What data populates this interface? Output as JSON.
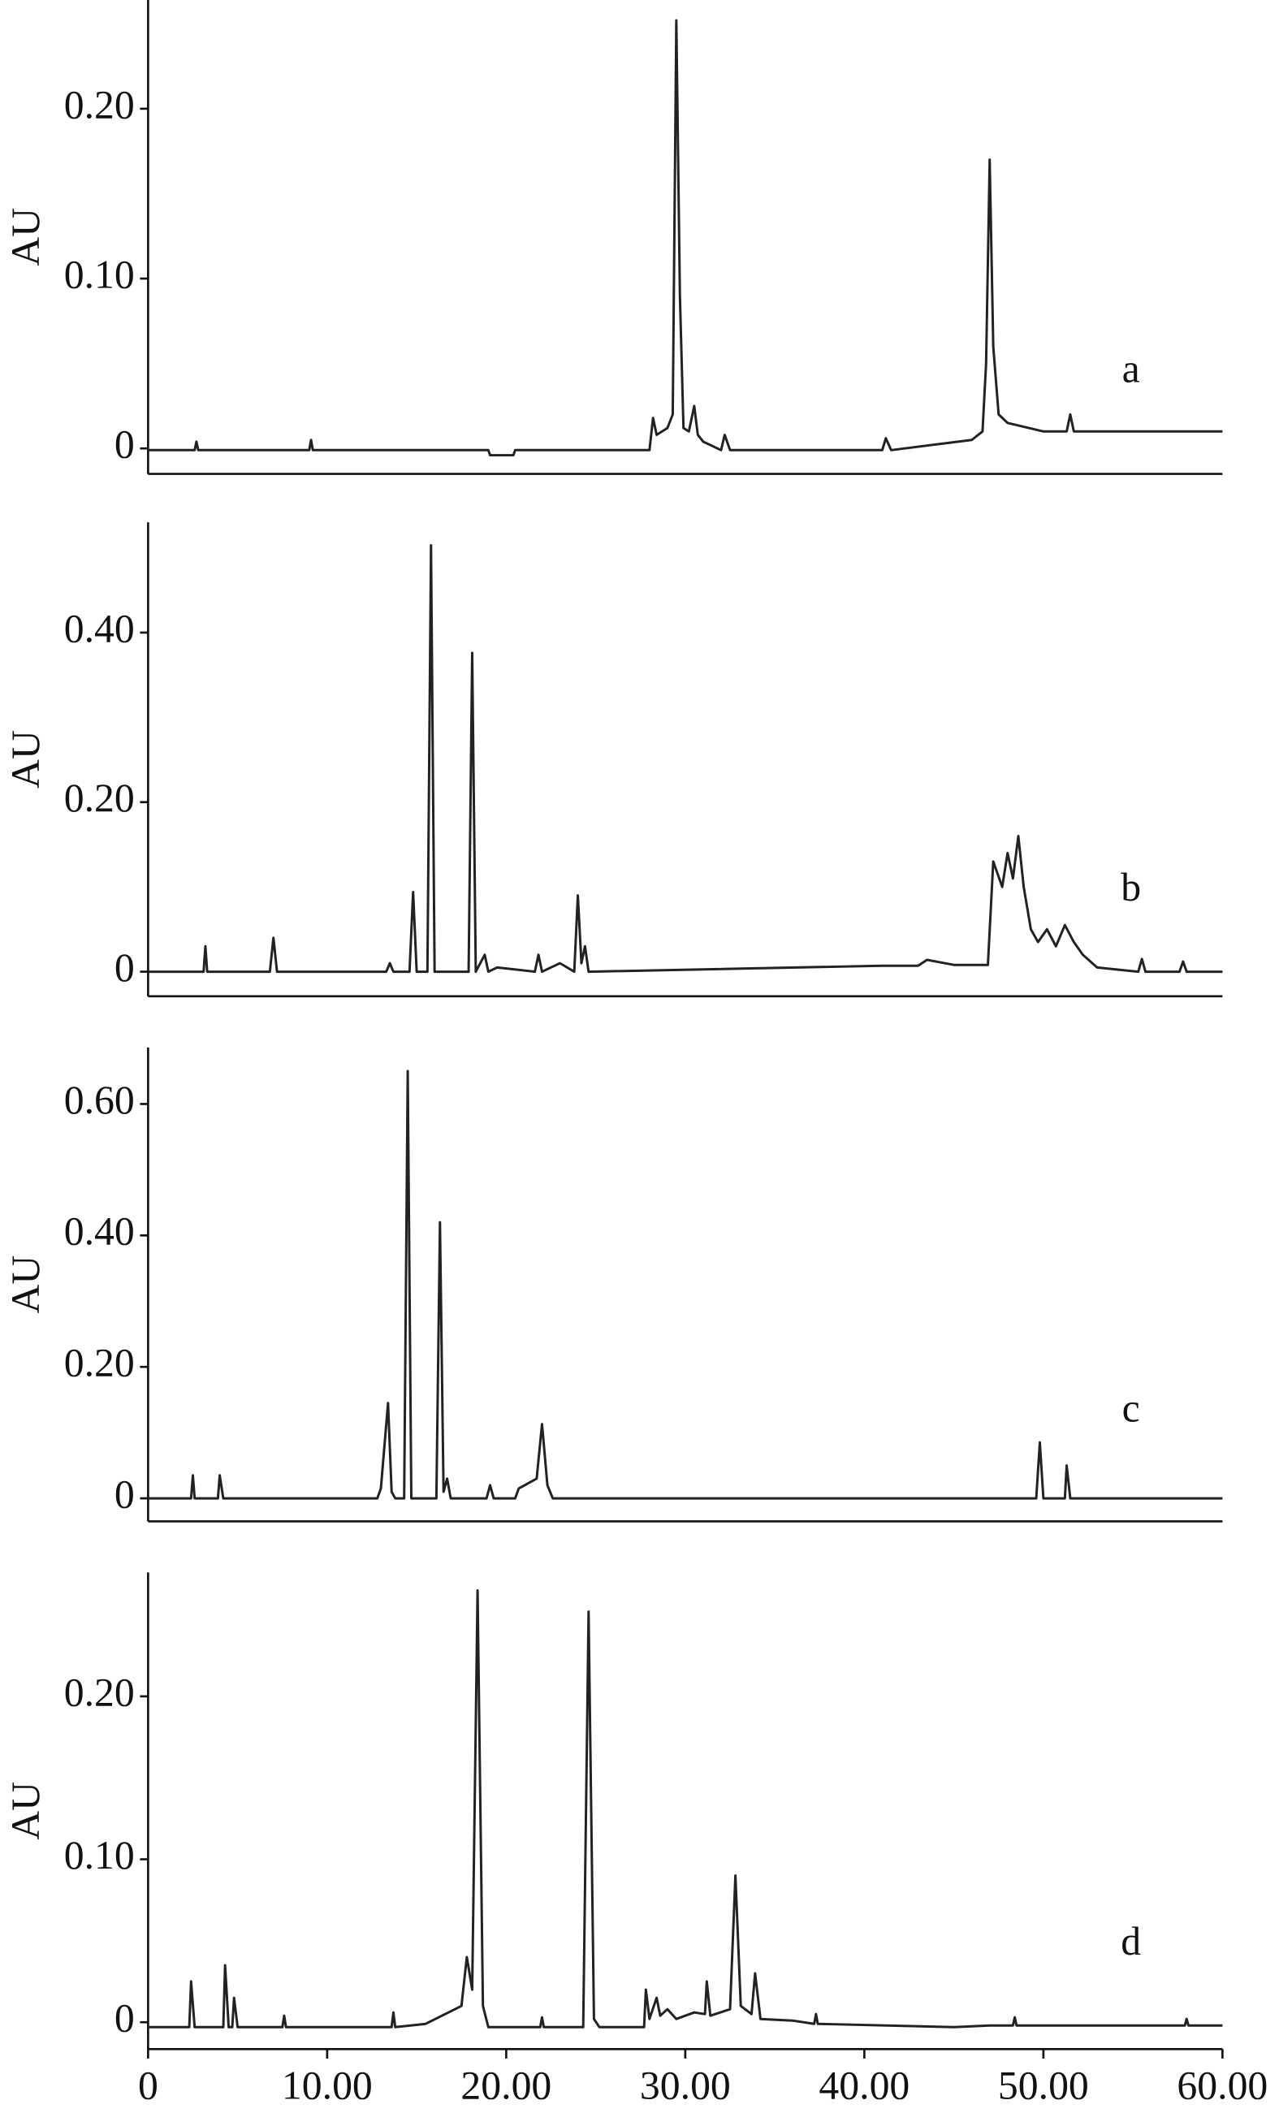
{
  "chart_data": [
    {
      "type": "line",
      "label": "a",
      "y_label": "AU",
      "color": "#222",
      "x": [
        0,
        2.6,
        2.7,
        2.8,
        9,
        9.1,
        9.2,
        19,
        19.1,
        20.4,
        20.5,
        28,
        28.2,
        28.4,
        29,
        29.3,
        29.5,
        29.7,
        29.9,
        30.2,
        30.5,
        30.7,
        31,
        32,
        32.2,
        32.5,
        41,
        41.2,
        41.5,
        46,
        46.6,
        46.8,
        47,
        47.2,
        47.5,
        48,
        50,
        51.3,
        51.5,
        51.7,
        55,
        60
      ],
      "values": [
        -0.001,
        -0.001,
        0.004,
        -0.001,
        -0.001,
        0.005,
        -0.001,
        -0.001,
        -0.004,
        -0.004,
        -0.001,
        -0.001,
        0.018,
        0.008,
        0.012,
        0.02,
        0.252,
        0.09,
        0.012,
        0.01,
        0.025,
        0.008,
        0.004,
        -0.001,
        0.008,
        -0.001,
        -0.001,
        0.006,
        -0.001,
        0.005,
        0.01,
        0.05,
        0.17,
        0.06,
        0.02,
        0.015,
        0.01,
        0.01,
        0.02,
        0.01,
        0.01,
        0.01
      ],
      "xlim": [
        0,
        60
      ],
      "ylim": [
        -0.015,
        0.264
      ],
      "yticks": [
        0,
        {
          "value": 0.1,
          "label": "0.10"
        },
        {
          "value": 0.2,
          "label": "0.20"
        }
      ]
    },
    {
      "type": "line",
      "label": "b",
      "y_label": "AU",
      "color": "#222",
      "x": [
        0,
        3.1,
        3.2,
        3.3,
        6.8,
        7,
        7.2,
        13.3,
        13.5,
        13.7,
        14.6,
        14.8,
        15,
        15.6,
        15.8,
        16,
        17.9,
        18.1,
        18.3,
        18.8,
        19,
        19.5,
        21.6,
        21.8,
        22,
        23,
        23.8,
        24,
        24.2,
        24.4,
        24.6,
        41,
        43,
        43.5,
        45,
        46.9,
        47.2,
        47.7,
        48,
        48.3,
        48.6,
        48.9,
        49.3,
        49.7,
        50.2,
        50.7,
        51.2,
        51.7,
        52.2,
        53,
        55.3,
        55.5,
        55.7,
        57.6,
        57.8,
        58,
        60
      ],
      "values": [
        0,
        0,
        0.03,
        0,
        0,
        0.04,
        0,
        0,
        0.01,
        0,
        0,
        0.094,
        0,
        0,
        0.503,
        0,
        0,
        0.376,
        0,
        0.02,
        0,
        0.005,
        0,
        0.02,
        0,
        0.01,
        0,
        0.09,
        0.01,
        0.03,
        0,
        0.007,
        0.007,
        0.014,
        0.008,
        0.008,
        0.13,
        0.1,
        0.14,
        0.11,
        0.16,
        0.1,
        0.05,
        0.035,
        0.05,
        0.03,
        0.055,
        0.035,
        0.02,
        0.005,
        0,
        0.015,
        0,
        0,
        0.012,
        0,
        0
      ],
      "xlim": [
        0,
        60
      ],
      "ylim": [
        -0.029,
        0.53
      ],
      "yticks": [
        0,
        {
          "value": 0.2,
          "label": "0.20"
        },
        {
          "value": 0.4,
          "label": "0.40"
        }
      ]
    },
    {
      "type": "line",
      "label": "c",
      "y_label": "AU",
      "color": "#222",
      "x": [
        0,
        2.4,
        2.5,
        2.6,
        3.9,
        4,
        4.2,
        12.8,
        13,
        13.4,
        13.6,
        13.8,
        14.3,
        14.5,
        14.7,
        16.1,
        16.3,
        16.5,
        16.7,
        16.9,
        18.9,
        19.1,
        19.3,
        20.5,
        20.7,
        21.7,
        22,
        22.3,
        22.6,
        49.6,
        49.8,
        50,
        51.2,
        51.3,
        51.5,
        60
      ],
      "values": [
        0,
        0,
        0.035,
        0,
        0,
        0.035,
        0,
        0,
        0.015,
        0.145,
        0.01,
        0,
        0,
        0.65,
        0,
        0,
        0.42,
        0.01,
        0.03,
        0,
        0,
        0.02,
        0,
        0,
        0.015,
        0.03,
        0.113,
        0.02,
        0,
        0,
        0.085,
        0,
        0,
        0.05,
        0,
        0
      ],
      "xlim": [
        0,
        60
      ],
      "ylim": [
        -0.035,
        0.686
      ],
      "yticks": [
        0,
        {
          "value": 0.2,
          "label": "0.20"
        },
        {
          "value": 0.4,
          "label": "0.40"
        },
        {
          "value": 0.6,
          "label": "0.60"
        }
      ]
    },
    {
      "type": "line",
      "label": "d",
      "y_label": "AU",
      "color": "#222",
      "x": [
        0,
        2.3,
        2.4,
        2.6,
        4.2,
        4.3,
        4.5,
        4.7,
        4.8,
        5,
        7.5,
        7.6,
        7.7,
        13.6,
        13.7,
        13.8,
        15.5,
        17.5,
        17.8,
        18.1,
        18.4,
        18.7,
        19,
        21.9,
        22,
        22.1,
        24.3,
        24.6,
        24.9,
        25.2,
        27.7,
        27.8,
        28,
        28.4,
        28.6,
        29,
        29.5,
        30.5,
        31.1,
        31.2,
        31.4,
        32.5,
        32.8,
        33.1,
        33.7,
        33.9,
        34.2,
        36,
        37.2,
        37.3,
        37.4,
        45,
        47,
        48.3,
        48.4,
        48.5,
        57.9,
        58,
        58.1,
        60
      ],
      "values": [
        -0.003,
        -0.003,
        0.025,
        -0.003,
        -0.003,
        0.035,
        -0.003,
        -0.003,
        0.015,
        -0.003,
        -0.003,
        0.004,
        -0.003,
        -0.003,
        0.006,
        -0.003,
        -0.001,
        0.01,
        0.04,
        0.02,
        0.265,
        0.01,
        -0.003,
        -0.003,
        0.003,
        -0.003,
        -0.003,
        0.252,
        0.002,
        -0.003,
        -0.003,
        0.02,
        0.002,
        0.015,
        0.004,
        0.008,
        0.002,
        0.006,
        0.005,
        0.025,
        0.004,
        0.008,
        0.09,
        0.01,
        0.005,
        0.03,
        0.002,
        0.001,
        -0.001,
        0.005,
        -0.001,
        -0.003,
        -0.002,
        -0.002,
        0.003,
        -0.002,
        -0.002,
        0.002,
        -0.002,
        -0.002
      ],
      "xlim": [
        0,
        60
      ],
      "ylim": [
        -0.0165,
        0.276
      ],
      "yticks": [
        0,
        {
          "value": 0.1,
          "label": "0.10"
        },
        {
          "value": 0.2,
          "label": "0.20"
        }
      ],
      "xticks": [
        0,
        {
          "value": 10,
          "label": "10.00"
        },
        {
          "value": 20,
          "label": "20.00"
        },
        {
          "value": 30,
          "label": "30.00"
        },
        {
          "value": 40,
          "label": "40.00"
        },
        {
          "value": 50,
          "label": "50.00"
        },
        {
          "value": 60,
          "label": "60.00"
        }
      ]
    }
  ]
}
